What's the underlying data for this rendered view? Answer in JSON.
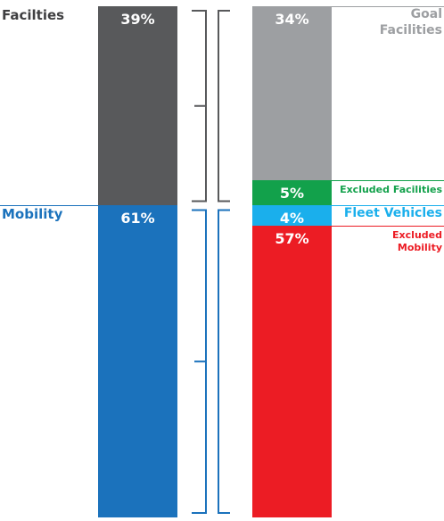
{
  "chart_data": {
    "type": "stacked_bar",
    "ylim": [
      0,
      100
    ],
    "bars": [
      {
        "names": [
          "Facilties",
          "Mobility"
        ],
        "values": [
          39,
          61
        ],
        "value_labels": [
          "39%",
          "61%"
        ],
        "colors": [
          "#58595b",
          "#1b72bc"
        ],
        "label_colors": [
          "#3f3f41",
          "#1b72bc"
        ],
        "label_side": "left"
      },
      {
        "names": [
          "Goal\nFacilities",
          "Excluded Facilities",
          "Fleet Vehicles",
          "Excluded\nMobility"
        ],
        "values": [
          34,
          5,
          4,
          57
        ],
        "value_labels": [
          "34%",
          "5%",
          "4%",
          "57%"
        ],
        "colors": [
          "#9d9fa2",
          "#12a14b",
          "#1aafec",
          "#ec1c24"
        ],
        "label_colors": [
          "#9d9fa2",
          "#12a14b",
          "#1aafec",
          "#ec1c24"
        ],
        "label_side": "right"
      }
    ]
  }
}
